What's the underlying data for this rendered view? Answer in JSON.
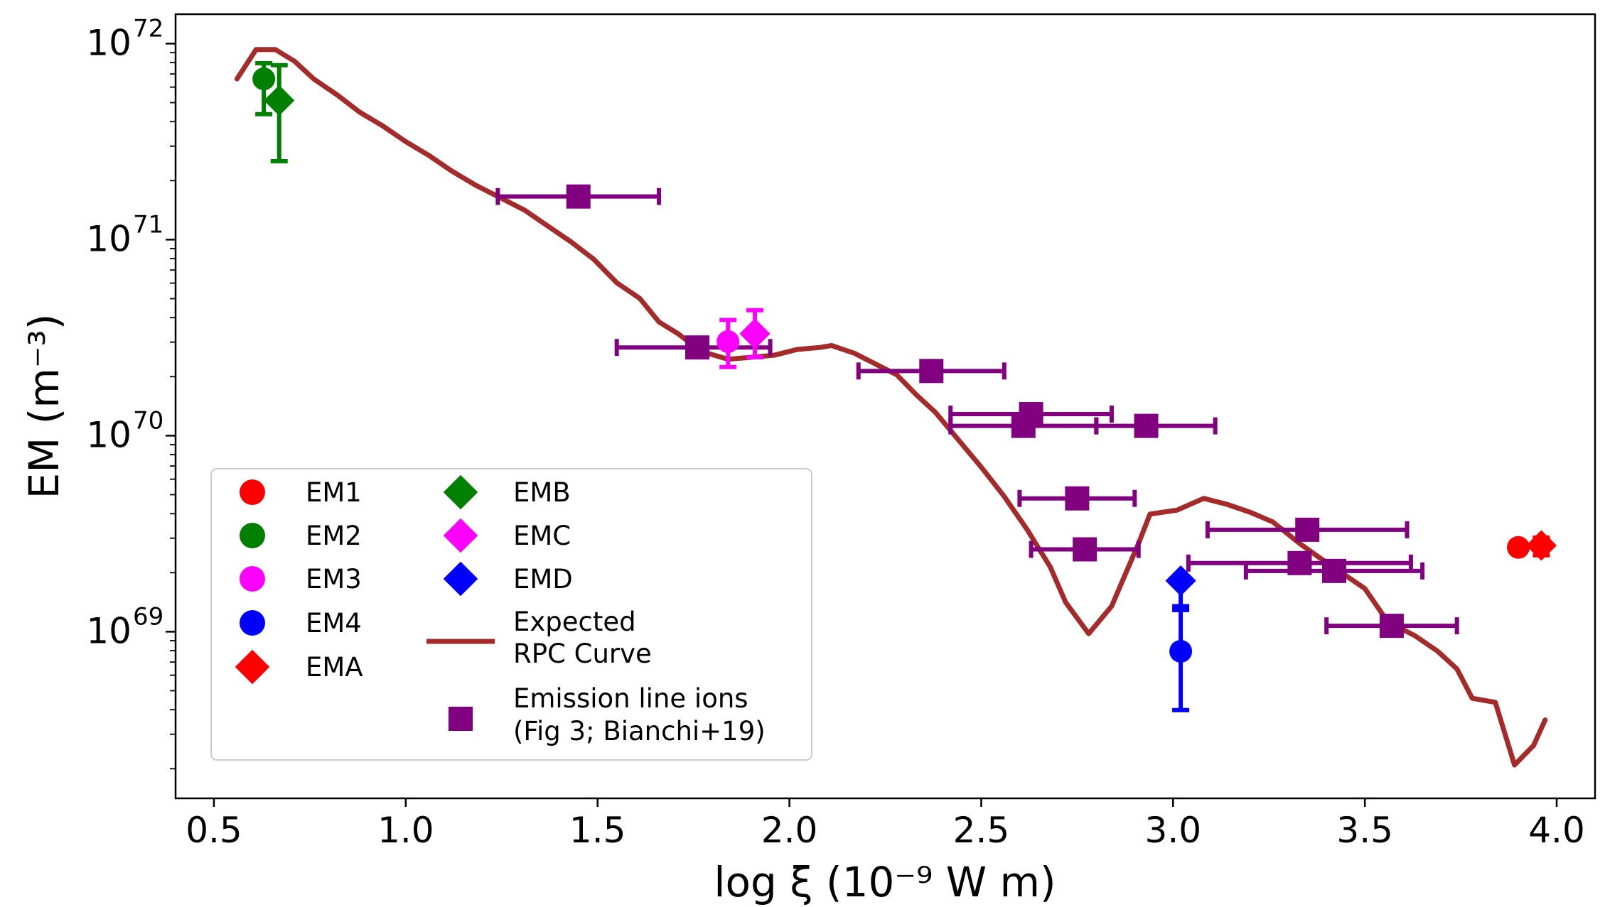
{
  "chart_data": {
    "type": "scatter",
    "xlabel": "log ξ (10⁻⁹ W m)",
    "ylabel": "EM (m⁻³)",
    "xlim": [
      0.4,
      4.1
    ],
    "ylim_log10": [
      68.15,
      72.15
    ],
    "yscale": "log",
    "xticks": [
      0.5,
      1.0,
      1.5,
      2.0,
      2.5,
      3.0,
      3.5,
      4.0
    ],
    "xtick_labels": [
      "0.5",
      "1.0",
      "1.5",
      "2.0",
      "2.5",
      "3.0",
      "3.5",
      "4.0"
    ],
    "yticks_log10": [
      69,
      70,
      71,
      72
    ],
    "ytick_labels": [
      {
        "base": "10",
        "exp": "69"
      },
      {
        "base": "10",
        "exp": "70"
      },
      {
        "base": "10",
        "exp": "71"
      },
      {
        "base": "10",
        "exp": "72"
      }
    ],
    "legend_position": "lower-left",
    "rpc_curve": {
      "name": "Expected RPC Curve",
      "label_lines": [
        "Expected",
        "RPC Curve"
      ],
      "color": "#a52a2a",
      "x": [
        0.56,
        0.61,
        0.66,
        0.71,
        0.76,
        0.82,
        0.88,
        0.94,
        1.0,
        1.06,
        1.12,
        1.18,
        1.25,
        1.31,
        1.37,
        1.43,
        1.49,
        1.55,
        1.61,
        1.66,
        1.71,
        1.77,
        1.84,
        1.9,
        1.96,
        2.02,
        2.08,
        2.11,
        2.17,
        2.23,
        2.28,
        2.33,
        2.38,
        2.44,
        2.5,
        2.56,
        2.62,
        2.68,
        2.72,
        2.78,
        2.84,
        2.91,
        2.94,
        3.01,
        3.08,
        3.14,
        3.2,
        3.26,
        3.33,
        3.38,
        3.44,
        3.5,
        3.56,
        3.63,
        3.69,
        3.74,
        3.78,
        3.84,
        3.89,
        3.94,
        3.97
      ],
      "y_log10": [
        71.82,
        71.97,
        71.97,
        71.91,
        71.82,
        71.74,
        71.65,
        71.58,
        71.5,
        71.43,
        71.35,
        71.28,
        71.21,
        71.15,
        71.07,
        70.99,
        70.9,
        70.78,
        70.7,
        70.58,
        70.52,
        70.43,
        70.39,
        70.4,
        70.41,
        70.44,
        70.45,
        70.46,
        70.42,
        70.36,
        70.31,
        70.21,
        70.12,
        69.98,
        69.84,
        69.69,
        69.52,
        69.33,
        69.15,
        68.99,
        69.13,
        69.45,
        69.6,
        69.62,
        69.68,
        69.65,
        69.61,
        69.56,
        69.45,
        69.38,
        69.3,
        69.22,
        69.05,
        68.98,
        68.9,
        68.81,
        68.66,
        68.64,
        68.32,
        68.42,
        68.55
      ]
    },
    "series": [
      {
        "name": "EM1",
        "marker": "circle",
        "color": "#ff0000",
        "points": [
          {
            "x": 3.9,
            "y_log10": 69.43,
            "yerr_lo": 0.02,
            "yerr_hi": 0.02
          }
        ]
      },
      {
        "name": "EM2",
        "marker": "circle",
        "color": "#008000",
        "points": [
          {
            "x": 0.63,
            "y_log10": 71.82,
            "yerr_lo": 0.18,
            "yerr_hi": 0.08
          }
        ]
      },
      {
        "name": "EM3",
        "marker": "circle",
        "color": "#ff00ff",
        "points": [
          {
            "x": 1.84,
            "y_log10": 70.48,
            "yerr_lo": 0.13,
            "yerr_hi": 0.11
          }
        ]
      },
      {
        "name": "EM4",
        "marker": "circle",
        "color": "#0000ff",
        "points": [
          {
            "x": 3.02,
            "y_log10": 68.9,
            "yerr_lo": 0.3,
            "yerr_hi": 0.23
          }
        ]
      },
      {
        "name": "EMA",
        "marker": "diamond",
        "color": "#ff0000",
        "points": [
          {
            "x": 3.96,
            "y_log10": 69.44,
            "yerr_lo": 0.05,
            "yerr_hi": 0.04
          }
        ]
      },
      {
        "name": "EMB",
        "marker": "diamond",
        "color": "#008000",
        "points": [
          {
            "x": 0.67,
            "y_log10": 71.71,
            "yerr_lo": 0.31,
            "yerr_hi": 0.18
          }
        ]
      },
      {
        "name": "EMC",
        "marker": "diamond",
        "color": "#ff00ff",
        "points": [
          {
            "x": 1.91,
            "y_log10": 70.52,
            "yerr_lo": 0.12,
            "yerr_hi": 0.12
          }
        ]
      },
      {
        "name": "EMD",
        "marker": "diamond",
        "color": "#0000ff",
        "points": [
          {
            "x": 3.02,
            "y_log10": 69.26,
            "yerr_lo": 0.15,
            "yerr_hi": 0.02
          }
        ]
      },
      {
        "name": "Emission line ions (Fig 3; Bianchi+19)",
        "label_lines": [
          "Emission line ions",
          "(Fig 3; Bianchi+19)"
        ],
        "marker": "square",
        "color": "#800080",
        "points": [
          {
            "x": 1.45,
            "y_log10": 71.22,
            "xerr_lo": 0.21,
            "xerr_hi": 0.21
          },
          {
            "x": 1.76,
            "y_log10": 70.45,
            "xerr_lo": 0.21,
            "xerr_hi": 0.19
          },
          {
            "x": 2.37,
            "y_log10": 70.33,
            "xerr_lo": 0.19,
            "xerr_hi": 0.19
          },
          {
            "x": 2.61,
            "y_log10": 70.05,
            "xerr_lo": 0.19,
            "xerr_hi": 0.19
          },
          {
            "x": 2.63,
            "y_log10": 70.11,
            "xerr_lo": 0.21,
            "xerr_hi": 0.21
          },
          {
            "x": 2.93,
            "y_log10": 70.05,
            "xerr_lo": 0.13,
            "xerr_hi": 0.18
          },
          {
            "x": 2.75,
            "y_log10": 69.68,
            "xerr_lo": 0.15,
            "xerr_hi": 0.15
          },
          {
            "x": 2.77,
            "y_log10": 69.42,
            "xerr_lo": 0.14,
            "xerr_hi": 0.14
          },
          {
            "x": 3.35,
            "y_log10": 69.52,
            "xerr_lo": 0.26,
            "xerr_hi": 0.26
          },
          {
            "x": 3.33,
            "y_log10": 69.35,
            "xerr_lo": 0.29,
            "xerr_hi": 0.29
          },
          {
            "x": 3.42,
            "y_log10": 69.31,
            "xerr_lo": 0.23,
            "xerr_hi": 0.23
          },
          {
            "x": 3.57,
            "y_log10": 69.03,
            "xerr_lo": 0.17,
            "xerr_hi": 0.17
          }
        ]
      }
    ]
  }
}
